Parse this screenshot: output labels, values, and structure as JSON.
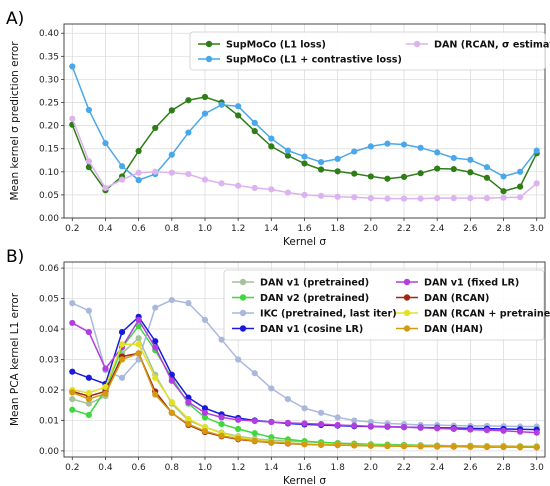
{
  "chart_data": [
    {
      "panel_label": "A)",
      "type": "line",
      "xlabel": "Kernel σ",
      "ylabel": "Mean kernel σ prediction error",
      "xlim": [
        0.15,
        3.05
      ],
      "ylim": [
        0,
        0.42
      ],
      "xticks": [
        "0.2",
        "0.4",
        "0.6",
        "0.8",
        "1.0",
        "1.2",
        "1.4",
        "1.6",
        "1.8",
        "2.0",
        "2.2",
        "2.4",
        "2.6",
        "2.8",
        "3.0"
      ],
      "yticks": [
        "0.00",
        "0.05",
        "0.10",
        "0.15",
        "0.20",
        "0.25",
        "0.30",
        "0.35",
        "0.40"
      ],
      "grid": true,
      "legend_position": "top",
      "x": [
        0.2,
        0.3,
        0.4,
        0.5,
        0.6,
        0.7,
        0.8,
        0.9,
        1.0,
        1.1,
        1.2,
        1.3,
        1.4,
        1.5,
        1.6,
        1.7,
        1.8,
        1.9,
        2.0,
        2.1,
        2.2,
        2.3,
        2.4,
        2.5,
        2.6,
        2.7,
        2.8,
        2.9,
        3.0
      ],
      "series": [
        {
          "name": "SupMoCo (L1 loss)",
          "color": "#2e7d17",
          "values": [
            0.202,
            0.11,
            0.06,
            0.09,
            0.145,
            0.195,
            0.233,
            0.255,
            0.262,
            0.25,
            0.222,
            0.188,
            0.155,
            0.135,
            0.118,
            0.105,
            0.101,
            0.096,
            0.09,
            0.085,
            0.089,
            0.097,
            0.107,
            0.106,
            0.099,
            0.087,
            0.058,
            0.068,
            0.14
          ]
        },
        {
          "name": "SupMoCo (L1 + contrastive loss)",
          "color": "#4aa8ea",
          "values": [
            0.328,
            0.234,
            0.162,
            0.112,
            0.082,
            0.095,
            0.137,
            0.185,
            0.226,
            0.245,
            0.242,
            0.206,
            0.172,
            0.146,
            0.133,
            0.121,
            0.128,
            0.144,
            0.155,
            0.161,
            0.159,
            0.152,
            0.142,
            0.13,
            0.126,
            0.11,
            0.09,
            0.1,
            0.146
          ]
        },
        {
          "name": "DAN (RCAN, σ estimator)",
          "color": "#dcb3ee",
          "values": [
            0.215,
            0.123,
            0.065,
            0.083,
            0.098,
            0.1,
            0.098,
            0.095,
            0.083,
            0.075,
            0.07,
            0.065,
            0.062,
            0.055,
            0.05,
            0.048,
            0.046,
            0.045,
            0.043,
            0.042,
            0.042,
            0.042,
            0.043,
            0.043,
            0.043,
            0.043,
            0.044,
            0.045,
            0.075
          ]
        }
      ]
    },
    {
      "panel_label": "B)",
      "type": "line",
      "xlabel": "Kernel σ",
      "ylabel": "Mean PCA kernel L1 error",
      "xlim": [
        0.15,
        3.05
      ],
      "ylim": [
        -0.002,
        0.062
      ],
      "xticks": [
        "0.2",
        "0.4",
        "0.6",
        "0.8",
        "1.0",
        "1.2",
        "1.4",
        "1.6",
        "1.8",
        "2.0",
        "2.2",
        "2.4",
        "2.6",
        "2.8",
        "3.0"
      ],
      "yticks": [
        "0.00",
        "0.01",
        "0.02",
        "0.03",
        "0.04",
        "0.05",
        "0.06"
      ],
      "grid": true,
      "legend_position": "top-right",
      "x": [
        0.2,
        0.3,
        0.4,
        0.5,
        0.6,
        0.7,
        0.8,
        0.9,
        1.0,
        1.1,
        1.2,
        1.3,
        1.4,
        1.5,
        1.6,
        1.7,
        1.8,
        1.9,
        2.0,
        2.1,
        2.2,
        2.3,
        2.4,
        2.5,
        2.6,
        2.7,
        2.8,
        2.9,
        3.0
      ],
      "series": [
        {
          "name": "DAN v1 (pretrained)",
          "color": "#a6c29a",
          "values": [
            0.017,
            0.0155,
            0.018,
            0.032,
            0.037,
            0.025,
            0.0155,
            0.01,
            0.0078,
            0.006,
            0.0048,
            0.004,
            0.0035,
            0.0032,
            0.003,
            0.0028,
            0.0026,
            0.0024,
            0.0022,
            0.0021,
            0.002,
            0.0019,
            0.0018,
            0.0017,
            0.0017,
            0.0016,
            0.0016,
            0.0015,
            0.0015
          ]
        },
        {
          "name": "DAN v2 (pretrained)",
          "color": "#3fd83f",
          "values": [
            0.0135,
            0.0118,
            0.02,
            0.034,
            0.041,
            0.033,
            0.024,
            0.0155,
            0.011,
            0.0088,
            0.0072,
            0.0058,
            0.0045,
            0.0038,
            0.0032,
            0.0028,
            0.0025,
            0.0023,
            0.0021,
            0.002,
            0.0019,
            0.0018,
            0.0017,
            0.0016,
            0.0016,
            0.0015,
            0.0015,
            0.0015,
            0.0014
          ]
        },
        {
          "name": "IKC (pretrained, last iter)",
          "color": "#a9b8dc",
          "values": [
            0.0485,
            0.046,
            0.0265,
            0.024,
            0.03,
            0.047,
            0.0495,
            0.0485,
            0.043,
            0.0365,
            0.03,
            0.0255,
            0.0205,
            0.017,
            0.014,
            0.0125,
            0.011,
            0.01,
            0.0095,
            0.009,
            0.0088,
            0.0085,
            0.0085,
            0.0083,
            0.0082,
            0.0082,
            0.0081,
            0.008,
            0.008
          ]
        },
        {
          "name": "DAN v1 (cosine LR)",
          "color": "#1a1adc",
          "values": [
            0.026,
            0.024,
            0.022,
            0.039,
            0.044,
            0.036,
            0.025,
            0.0175,
            0.014,
            0.012,
            0.0108,
            0.01,
            0.0095,
            0.009,
            0.0087,
            0.0085,
            0.0083,
            0.0081,
            0.008,
            0.0079,
            0.0078,
            0.0077,
            0.0076,
            0.0075,
            0.0074,
            0.0073,
            0.0072,
            0.0071,
            0.007
          ]
        },
        {
          "name": "DAN v1 (fixed LR)",
          "color": "#b33ee0",
          "values": [
            0.042,
            0.039,
            0.027,
            0.034,
            0.043,
            0.034,
            0.023,
            0.016,
            0.0125,
            0.011,
            0.0102,
            0.0098,
            0.0095,
            0.0092,
            0.009,
            0.0088,
            0.0085,
            0.0083,
            0.0081,
            0.008,
            0.0078,
            0.0076,
            0.0074,
            0.0072,
            0.007,
            0.0068,
            0.0066,
            0.0063,
            0.006
          ]
        },
        {
          "name": "DAN (RCAN)",
          "color": "#a32612",
          "values": [
            0.0195,
            0.018,
            0.0195,
            0.031,
            0.032,
            0.0195,
            0.0125,
            0.0085,
            0.0062,
            0.0048,
            0.0038,
            0.0032,
            0.0027,
            0.0024,
            0.0022,
            0.002,
            0.0019,
            0.0018,
            0.0017,
            0.0016,
            0.0016,
            0.0015,
            0.0015,
            0.0014,
            0.0014,
            0.0013,
            0.0013,
            0.0013,
            0.0012
          ]
        },
        {
          "name": "DAN (RCAN + pretrained)",
          "color": "#e2e223",
          "values": [
            0.02,
            0.019,
            0.021,
            0.035,
            0.035,
            0.024,
            0.016,
            0.0105,
            0.0078,
            0.0058,
            0.0045,
            0.0036,
            0.003,
            0.0026,
            0.0023,
            0.0021,
            0.002,
            0.0019,
            0.0018,
            0.0017,
            0.0016,
            0.0016,
            0.0015,
            0.0015,
            0.0014,
            0.0014,
            0.0014,
            0.0013,
            0.0013
          ]
        },
        {
          "name": "DAN (HAN)",
          "color": "#d49a12",
          "values": [
            0.0192,
            0.017,
            0.0188,
            0.03,
            0.032,
            0.0185,
            0.0125,
            0.0088,
            0.0065,
            0.005,
            0.004,
            0.0033,
            0.0028,
            0.0025,
            0.0022,
            0.002,
            0.0019,
            0.0018,
            0.0017,
            0.0016,
            0.0015,
            0.0015,
            0.0014,
            0.0014,
            0.0013,
            0.0013,
            0.0013,
            0.0012,
            0.0012
          ]
        }
      ]
    }
  ]
}
